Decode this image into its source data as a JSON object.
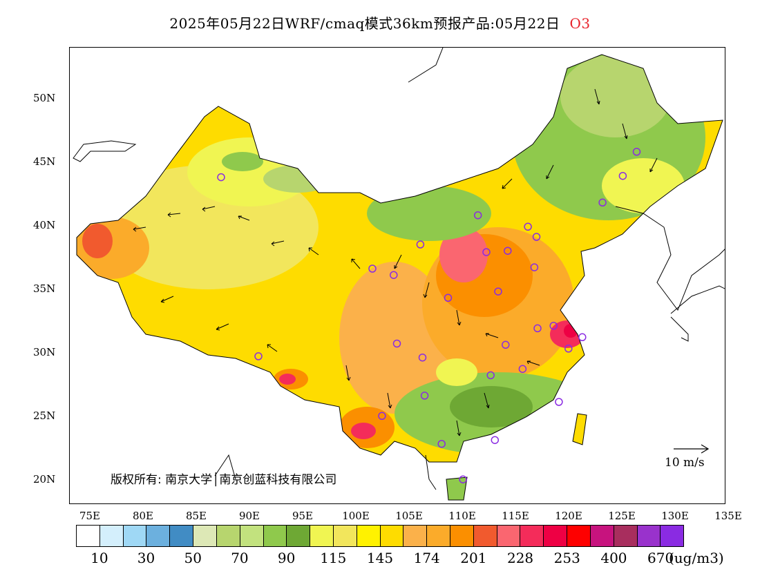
{
  "title": "2025年05月22日WRF/cmaq模式36km预报产品:05月22日",
  "species": "O3",
  "copyright": "版权所有: 南京大学│南京创蓝科技有限公司",
  "wind_reference": "10 m/s",
  "unit": "(ug/m3)",
  "lat_labels": [
    "50N",
    "45N",
    "40N",
    "35N",
    "30N",
    "25N",
    "20N"
  ],
  "lon_labels": [
    "75E",
    "80E",
    "85E",
    "90E",
    "95E",
    "100E",
    "105E",
    "110E",
    "115E",
    "120E",
    "125E",
    "130E",
    "135E"
  ],
  "colorbar": {
    "colors": [
      "#ffffff",
      "#d4effc",
      "#9fd8f5",
      "#6cb0de",
      "#418cc4",
      "#dde8b6",
      "#b7d56e",
      "#c2e27e",
      "#8fc94c",
      "#6ea834",
      "#f0f552",
      "#f2e65c",
      "#fff200",
      "#fedc00",
      "#fbb14a",
      "#fbab2a",
      "#fb8f00",
      "#f15a2e",
      "#fa6670",
      "#f42c5a",
      "#ee0044",
      "#fe0000",
      "#c7137e",
      "#a82e5e",
      "#9932cc",
      "#8a2be2"
    ],
    "labels": [
      "10",
      "30",
      "50",
      "70",
      "90",
      "115",
      "145",
      "174",
      "201",
      "228",
      "253",
      "400",
      "670"
    ]
  },
  "stations": [
    {
      "lon": 87.6,
      "lat": 43.8
    },
    {
      "lon": 91.1,
      "lat": 29.7
    },
    {
      "lon": 101.8,
      "lat": 36.6
    },
    {
      "lon": 103.8,
      "lat": 36.1
    },
    {
      "lon": 106.3,
      "lat": 38.5
    },
    {
      "lon": 111.7,
      "lat": 40.8
    },
    {
      "lon": 116.4,
      "lat": 39.9
    },
    {
      "lon": 117.2,
      "lat": 39.1
    },
    {
      "lon": 112.5,
      "lat": 37.9
    },
    {
      "lon": 114.5,
      "lat": 38.0
    },
    {
      "lon": 117.0,
      "lat": 36.7
    },
    {
      "lon": 113.6,
      "lat": 34.8
    },
    {
      "lon": 108.9,
      "lat": 34.3
    },
    {
      "lon": 104.1,
      "lat": 30.7
    },
    {
      "lon": 106.5,
      "lat": 29.6
    },
    {
      "lon": 114.3,
      "lat": 30.6
    },
    {
      "lon": 117.3,
      "lat": 31.9
    },
    {
      "lon": 118.8,
      "lat": 32.1
    },
    {
      "lon": 120.2,
      "lat": 30.3
    },
    {
      "lon": 121.5,
      "lat": 31.2
    },
    {
      "lon": 112.9,
      "lat": 28.2
    },
    {
      "lon": 115.9,
      "lat": 28.7
    },
    {
      "lon": 119.3,
      "lat": 26.1
    },
    {
      "lon": 113.3,
      "lat": 23.1
    },
    {
      "lon": 108.3,
      "lat": 22.8
    },
    {
      "lon": 110.3,
      "lat": 20.0
    },
    {
      "lon": 106.7,
      "lat": 26.6
    },
    {
      "lon": 102.7,
      "lat": 25.0
    },
    {
      "lon": 123.4,
      "lat": 41.8
    },
    {
      "lon": 125.3,
      "lat": 43.9
    },
    {
      "lon": 126.6,
      "lat": 45.8
    }
  ]
}
